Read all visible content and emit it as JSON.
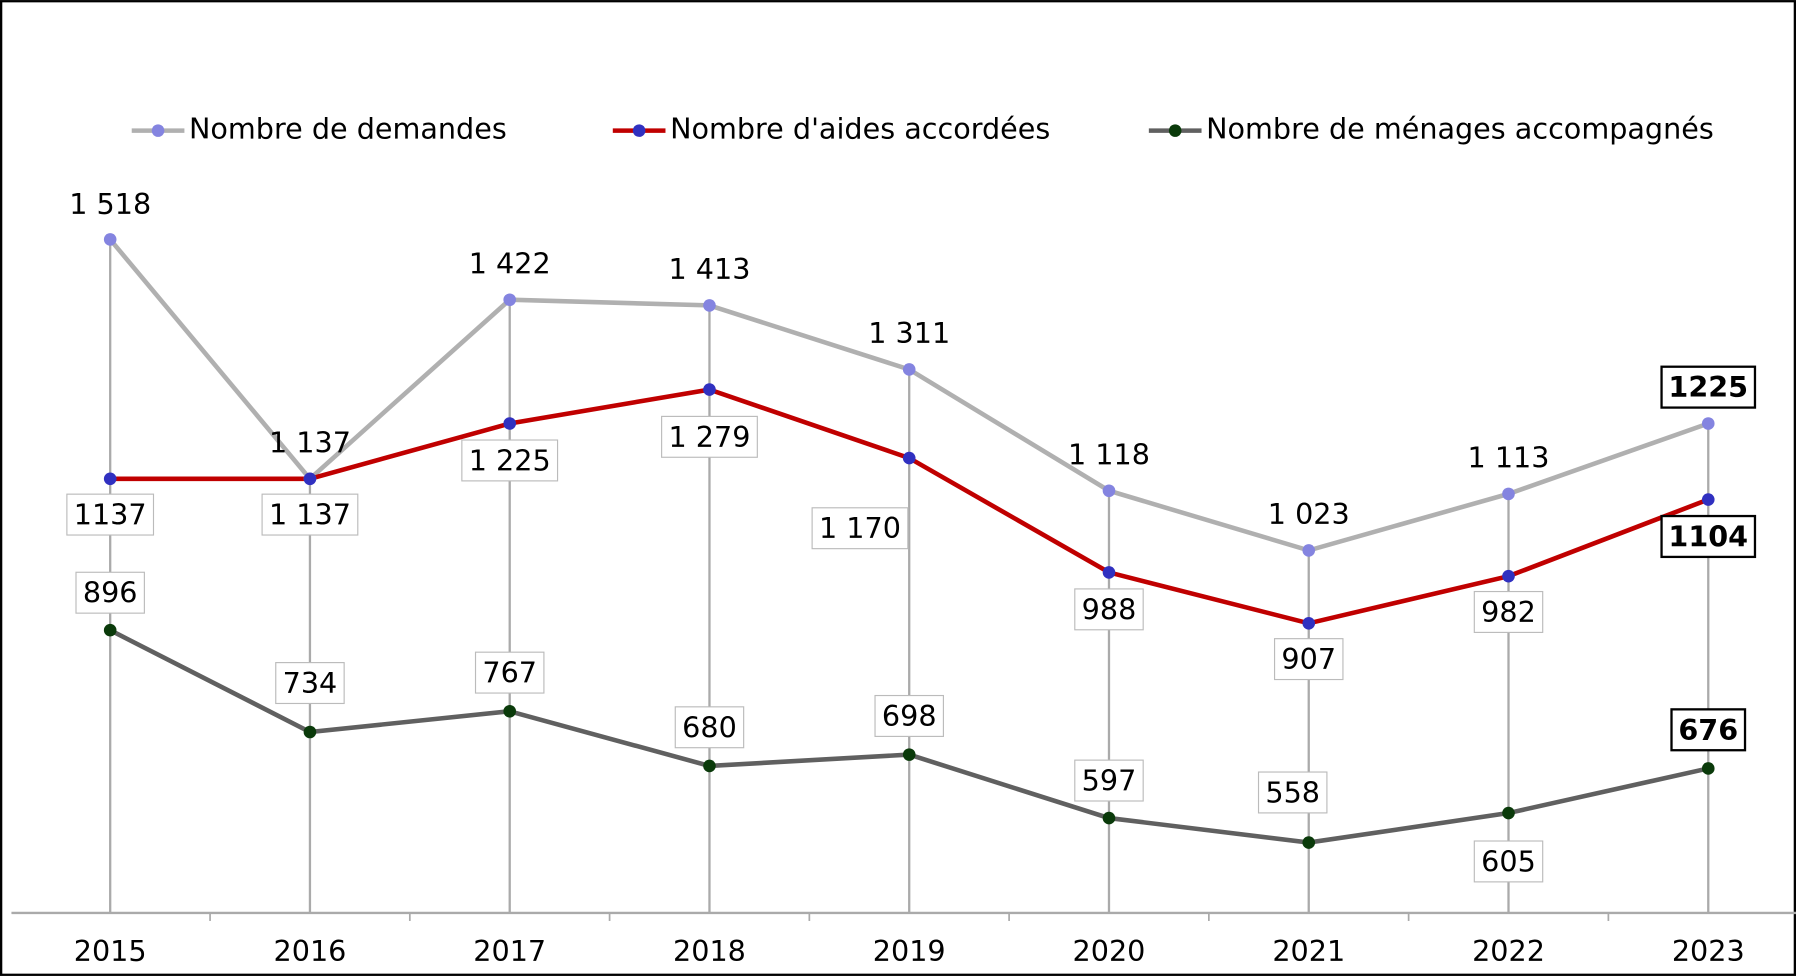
{
  "chart_data": {
    "type": "line",
    "categories": [
      "2015",
      "2016",
      "2017",
      "2018",
      "2019",
      "2020",
      "2021",
      "2022",
      "2023"
    ],
    "series": [
      {
        "name": "Nombre de demandes",
        "color": "#b0b0b0",
        "marker_color": "#8484e0",
        "values": [
          1518,
          1137,
          1422,
          1413,
          1311,
          1118,
          1023,
          1113,
          1225
        ],
        "value_labels": [
          "1 518",
          "1 137",
          "1 422",
          "1 413",
          "1 311",
          "1 118",
          "1 023",
          "1 113",
          "1225"
        ]
      },
      {
        "name": "Nombre d'aides accordées",
        "color": "#c00000",
        "marker_color": "#3030c0",
        "values": [
          1137,
          1137,
          1225,
          1279,
          1170,
          988,
          907,
          982,
          1104
        ],
        "value_labels": [
          "1137",
          "1 137",
          "1 225",
          "1 279",
          "1 170",
          "988",
          "907",
          "982",
          "1104"
        ]
      },
      {
        "name": "Nombre de ménages accompagnés",
        "color": "#606060",
        "marker_color": "#0a3a0a",
        "values": [
          896,
          734,
          767,
          680,
          698,
          597,
          558,
          605,
          676
        ],
        "value_labels": [
          "896",
          "734",
          "767",
          "680",
          "698",
          "597",
          "558",
          "605",
          "676"
        ]
      }
    ],
    "ylim": [
      446,
      1600
    ]
  }
}
